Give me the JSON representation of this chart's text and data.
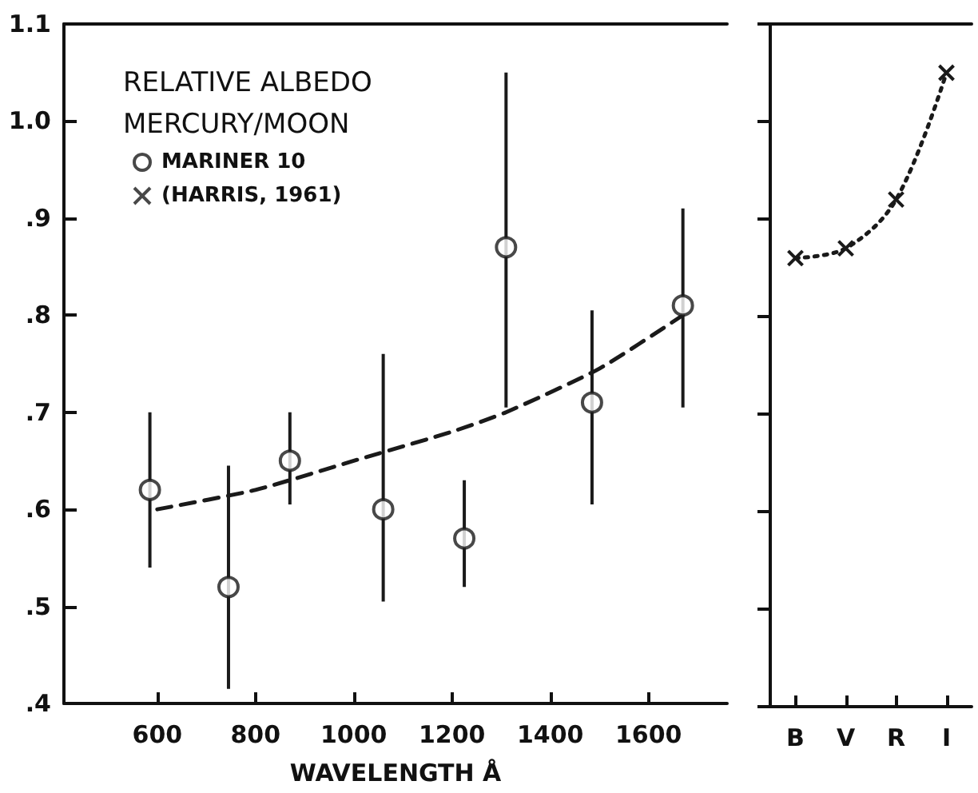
{
  "chart_data": [
    {
      "type": "scatter",
      "title": "RELATIVE ALBEDO MERCURY/MOON",
      "xlabel": "WAVELENGTH Å",
      "xlim": [
        410,
        1760
      ],
      "xticks": [
        600,
        800,
        1000,
        1200,
        1400,
        1600
      ],
      "ylim": [
        0.4,
        1.1
      ],
      "yticks": [
        {
          "value": 0.4,
          "label": ".4"
        },
        {
          "value": 0.5,
          "label": ".5"
        },
        {
          "value": 0.6,
          "label": ".6"
        },
        {
          "value": 0.7,
          "label": ".7"
        },
        {
          "value": 0.8,
          "label": ".8"
        },
        {
          "value": 0.9,
          "label": ".9"
        },
        {
          "value": 1.0,
          "label": "1.0"
        },
        1.1
      ],
      "legend": "top left",
      "series": [
        {
          "name": "MARINER 10",
          "color": "#1a1a1a",
          "marker": "circle",
          "x": [
            585,
            745,
            870,
            1060,
            1225,
            1310,
            1485,
            1670
          ],
          "values": [
            0.62,
            0.52,
            0.65,
            0.6,
            0.57,
            0.87,
            0.71,
            0.81
          ],
          "errors": [
            [
              0.54,
              0.7
            ],
            [
              0.415,
              0.645
            ],
            [
              0.605,
              0.7
            ],
            [
              0.505,
              0.76
            ],
            [
              0.52,
              0.63
            ],
            [
              0.705,
              1.05
            ],
            [
              0.605,
              0.805
            ],
            [
              0.705,
              0.91
            ]
          ]
        },
        {
          "type": "line",
          "color": "#1a1a1a",
          "line_style": "dashed",
          "marker": "none",
          "x": [
            600,
            800,
            1000,
            1200,
            1310,
            1500,
            1670
          ],
          "values": [
            0.6,
            0.62,
            0.65,
            0.68,
            0.7,
            0.745,
            0.8
          ]
        }
      ]
    },
    {
      "type": "line",
      "categories": [
        "B",
        "V",
        "R",
        "I"
      ],
      "ylim": [
        0.4,
        1.1
      ],
      "yticks": [
        {
          "value": 0.4,
          "label": null
        },
        {
          "value": 0.5,
          "label": null
        },
        {
          "value": 0.6,
          "label": null
        },
        {
          "value": 0.7,
          "label": null
        },
        {
          "value": 0.8,
          "label": null
        },
        {
          "value": 0.9,
          "label": null
        },
        {
          "value": 1.0,
          "label": null
        },
        {
          "value": 1.1,
          "label": null
        }
      ],
      "tick_labels": "x",
      "line_style": "dotted",
      "marker": "cross",
      "series": [
        {
          "name": "(HARRIS, 1961)",
          "color": "#1a1a1a",
          "values": [
            0.86,
            0.87,
            0.92,
            1.05
          ]
        }
      ]
    }
  ]
}
